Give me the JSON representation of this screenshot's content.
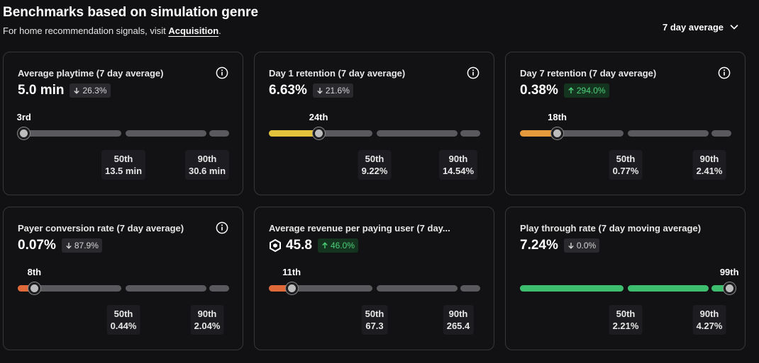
{
  "header": {
    "title": "Benchmarks based on simulation genre",
    "subtitle_prefix": "For home recommendation signals, visit ",
    "subtitle_link": "Acquisition",
    "subtitle_suffix": ".",
    "period_select": "7 day average"
  },
  "colors": {
    "gray": "#5a5a5e",
    "yellow": "#e3c23c",
    "orange": "#e59a3b",
    "red_orange": "#e0693a",
    "green": "#3dbd6e"
  },
  "cards": [
    {
      "title": "Average playtime (7 day average)",
      "value": "5.0 min",
      "delta": "26.3%",
      "delta_dir": "down",
      "rank": "3rd",
      "percentile": 3,
      "fill_color": "",
      "currency_icon": false,
      "info": true,
      "p50_label": "50th",
      "p50_value": "13.5 min",
      "p90_label": "90th",
      "p90_value": "30.6 min"
    },
    {
      "title": "Day 1 retention (7 day average)",
      "value": "6.63%",
      "delta": "21.6%",
      "delta_dir": "down",
      "rank": "24th",
      "percentile": 24,
      "fill_color": "#e3c23c",
      "currency_icon": false,
      "info": true,
      "p50_label": "50th",
      "p50_value": "9.22%",
      "p90_label": "90th",
      "p90_value": "14.54%"
    },
    {
      "title": "Day 7 retention (7 day average)",
      "value": "0.38%",
      "delta": "294.0%",
      "delta_dir": "up",
      "rank": "18th",
      "percentile": 18,
      "fill_color": "#e59a3b",
      "currency_icon": false,
      "info": true,
      "p50_label": "50th",
      "p50_value": "0.77%",
      "p90_label": "90th",
      "p90_value": "2.41%"
    },
    {
      "title": "Payer conversion rate (7 day average)",
      "value": "0.07%",
      "delta": "87.9%",
      "delta_dir": "down",
      "rank": "8th",
      "percentile": 8,
      "fill_color": "#e0693a",
      "currency_icon": false,
      "info": true,
      "p50_label": "50th",
      "p50_value": "0.44%",
      "p90_label": "90th",
      "p90_value": "2.04%"
    },
    {
      "title": "Average revenue per paying user (7 day...",
      "value": "45.8",
      "delta": "46.0%",
      "delta_dir": "up",
      "rank": "11th",
      "percentile": 11,
      "fill_color": "#e0693a",
      "currency_icon": true,
      "info": false,
      "p50_label": "50th",
      "p50_value": "67.3",
      "p90_label": "90th",
      "p90_value": "265.4"
    },
    {
      "title": "Play through rate (7 day moving average)",
      "value": "7.24%",
      "delta": "0.0%",
      "delta_dir": "down",
      "rank": "99th",
      "percentile": 99,
      "fill_color": "#3dbd6e",
      "currency_icon": false,
      "info": false,
      "p50_label": "50th",
      "p50_value": "2.21%",
      "p90_label": "90th",
      "p90_value": "4.27%"
    }
  ]
}
